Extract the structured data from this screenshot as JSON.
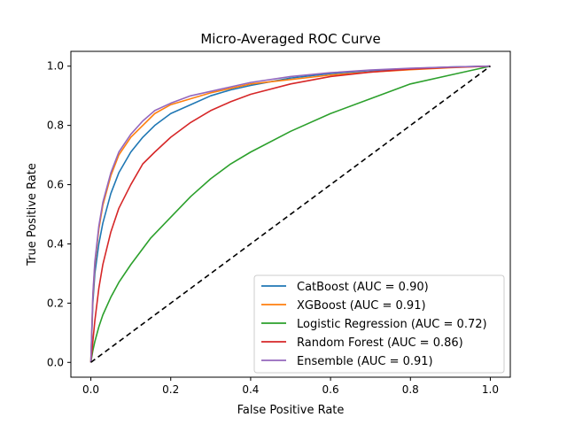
{
  "chart_data": {
    "type": "line",
    "title": "Micro-Averaged ROC Curve",
    "xlabel": "False Positive Rate",
    "ylabel": "True Positive Rate",
    "xlim": [
      -0.05,
      1.05
    ],
    "ylim": [
      -0.05,
      1.05
    ],
    "x_ticks": [
      "0.0",
      "0.2",
      "0.4",
      "0.6",
      "0.8",
      "1.0"
    ],
    "y_ticks": [
      "0.0",
      "0.2",
      "0.4",
      "0.6",
      "0.8",
      "1.0"
    ],
    "grid": false,
    "legend_position": "lower-right",
    "series": [
      {
        "name": "CatBoost (AUC = 0.90)",
        "color": "#1f77b4",
        "x": [
          0,
          0.005,
          0.01,
          0.02,
          0.03,
          0.05,
          0.07,
          0.1,
          0.13,
          0.16,
          0.2,
          0.25,
          0.3,
          0.35,
          0.4,
          0.5,
          0.6,
          0.7,
          0.8,
          0.9,
          1.0
        ],
        "y": [
          0,
          0.2,
          0.3,
          0.4,
          0.47,
          0.57,
          0.64,
          0.71,
          0.76,
          0.8,
          0.84,
          0.87,
          0.9,
          0.92,
          0.935,
          0.96,
          0.975,
          0.985,
          0.992,
          0.997,
          1.0
        ]
      },
      {
        "name": "XGBoost (AUC = 0.91)",
        "color": "#ff7f0e",
        "x": [
          0,
          0.005,
          0.01,
          0.02,
          0.03,
          0.05,
          0.07,
          0.1,
          0.13,
          0.16,
          0.2,
          0.25,
          0.3,
          0.35,
          0.4,
          0.5,
          0.6,
          0.7,
          0.8,
          0.9,
          1.0
        ],
        "y": [
          0,
          0.22,
          0.33,
          0.45,
          0.53,
          0.63,
          0.7,
          0.76,
          0.8,
          0.84,
          0.87,
          0.89,
          0.91,
          0.925,
          0.94,
          0.955,
          0.97,
          0.98,
          0.988,
          0.995,
          1.0
        ]
      },
      {
        "name": "Logistic Regression (AUC = 0.72)",
        "color": "#2ca02c",
        "x": [
          0,
          0.005,
          0.01,
          0.02,
          0.03,
          0.05,
          0.07,
          0.1,
          0.15,
          0.2,
          0.25,
          0.3,
          0.35,
          0.4,
          0.5,
          0.6,
          0.7,
          0.8,
          0.9,
          1.0
        ],
        "y": [
          0,
          0.04,
          0.07,
          0.12,
          0.16,
          0.22,
          0.27,
          0.33,
          0.42,
          0.49,
          0.56,
          0.62,
          0.67,
          0.71,
          0.78,
          0.84,
          0.89,
          0.94,
          0.97,
          1.0
        ]
      },
      {
        "name": "Random Forest (AUC = 0.86)",
        "color": "#d62728",
        "x": [
          0,
          0.005,
          0.01,
          0.02,
          0.03,
          0.05,
          0.07,
          0.1,
          0.13,
          0.16,
          0.2,
          0.25,
          0.3,
          0.35,
          0.4,
          0.5,
          0.6,
          0.7,
          0.8,
          0.9,
          1.0
        ],
        "y": [
          0,
          0.07,
          0.14,
          0.25,
          0.33,
          0.44,
          0.52,
          0.6,
          0.67,
          0.71,
          0.76,
          0.81,
          0.85,
          0.88,
          0.905,
          0.94,
          0.965,
          0.98,
          0.99,
          0.996,
          1.0
        ]
      },
      {
        "name": "Ensemble (AUC = 0.91)",
        "color": "#9467bd",
        "x": [
          0,
          0.005,
          0.01,
          0.02,
          0.03,
          0.05,
          0.07,
          0.1,
          0.13,
          0.16,
          0.2,
          0.25,
          0.3,
          0.35,
          0.4,
          0.5,
          0.6,
          0.7,
          0.8,
          0.9,
          1.0
        ],
        "y": [
          0,
          0.23,
          0.34,
          0.46,
          0.54,
          0.64,
          0.71,
          0.77,
          0.815,
          0.85,
          0.875,
          0.9,
          0.915,
          0.93,
          0.945,
          0.965,
          0.978,
          0.987,
          0.993,
          0.997,
          1.0
        ]
      }
    ],
    "reference_line": {
      "x": [
        0,
        1
      ],
      "y": [
        0,
        1
      ],
      "color": "#000000",
      "style": "dashed"
    }
  }
}
